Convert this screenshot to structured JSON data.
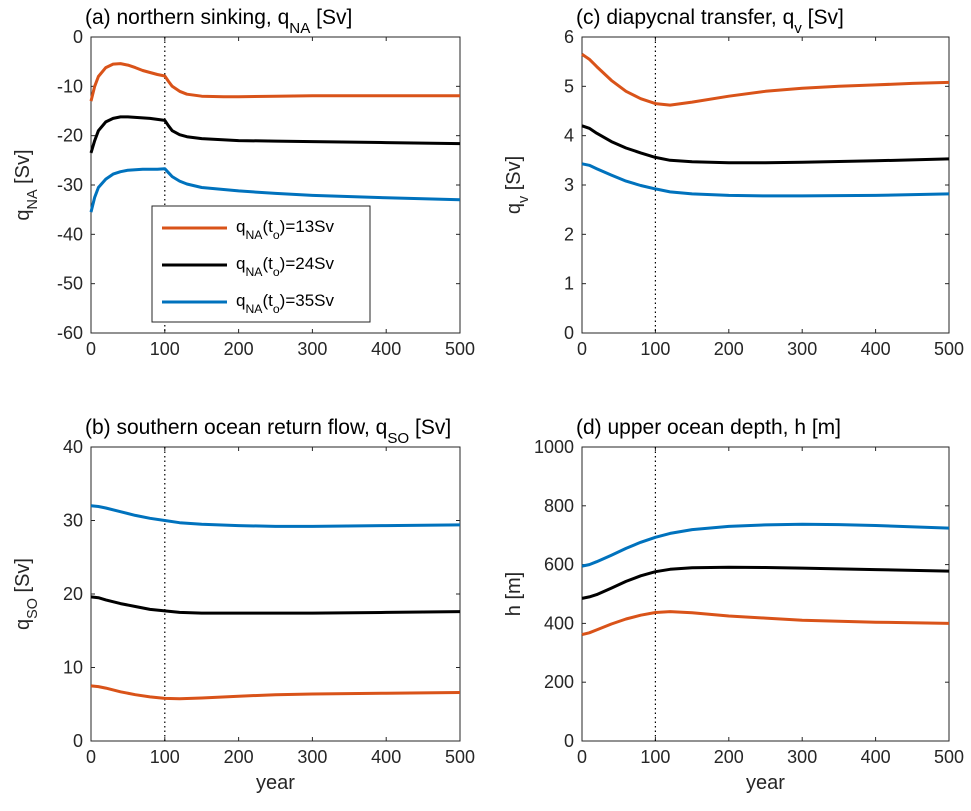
{
  "chart_data": [
    {
      "type": "line",
      "panel": "a",
      "title": "(a) northern sinking, q",
      "title_subscript": "NA",
      "title_suffix": " [Sv]",
      "ylabel": "q",
      "ylabel_subscript": "NA",
      "ylabel_suffix": " [Sv]",
      "xlabel": "",
      "xlim": [
        0,
        500
      ],
      "ylim": [
        -60,
        0
      ],
      "xticks": [
        0,
        100,
        200,
        300,
        400,
        500
      ],
      "yticks": [
        -60,
        -50,
        -40,
        -30,
        -20,
        -10,
        0
      ],
      "vline_x": 100,
      "legend": true,
      "series": [
        {
          "name": "q_NA(t_o)=13Sv",
          "color": "#D95319",
          "x": [
            0,
            5,
            10,
            20,
            30,
            40,
            50,
            60,
            70,
            80,
            90,
            100,
            105,
            110,
            120,
            130,
            150,
            180,
            200,
            250,
            300,
            400,
            500
          ],
          "y": [
            -13,
            -10,
            -8,
            -6.2,
            -5.5,
            -5.4,
            -5.7,
            -6.2,
            -6.8,
            -7.2,
            -7.6,
            -7.9,
            -9.0,
            -10.0,
            -11.0,
            -11.6,
            -12.0,
            -12.1,
            -12.1,
            -12.0,
            -11.9,
            -11.9,
            -11.9
          ]
        },
        {
          "name": "q_NA(t_o)=24Sv",
          "color": "#000000",
          "x": [
            0,
            5,
            10,
            20,
            30,
            40,
            50,
            60,
            70,
            80,
            90,
            100,
            105,
            110,
            120,
            130,
            150,
            200,
            250,
            300,
            400,
            500
          ],
          "y": [
            -23.5,
            -21,
            -19,
            -17.2,
            -16.5,
            -16.2,
            -16.2,
            -16.3,
            -16.4,
            -16.5,
            -16.7,
            -16.9,
            -18.0,
            -19.0,
            -19.8,
            -20.2,
            -20.6,
            -21.0,
            -21.1,
            -21.2,
            -21.4,
            -21.6
          ]
        },
        {
          "name": "q_NA(t_o)=35Sv",
          "color": "#0072BD",
          "x": [
            0,
            5,
            10,
            20,
            30,
            40,
            50,
            60,
            70,
            80,
            90,
            100,
            105,
            110,
            120,
            130,
            150,
            200,
            250,
            300,
            400,
            500
          ],
          "y": [
            -35.5,
            -32.5,
            -30.5,
            -28.8,
            -27.8,
            -27.3,
            -27.0,
            -26.9,
            -26.8,
            -26.8,
            -26.8,
            -26.7,
            -27.5,
            -28.3,
            -29.2,
            -29.8,
            -30.5,
            -31.2,
            -31.7,
            -32.1,
            -32.6,
            -33.0
          ]
        }
      ]
    },
    {
      "type": "line",
      "panel": "c",
      "title": "(c) diapycnal transfer, q",
      "title_subscript": "v",
      "title_suffix": " [Sv]",
      "ylabel": "q",
      "ylabel_subscript": "v",
      "ylabel_suffix": " [Sv]",
      "xlabel": "",
      "xlim": [
        0,
        500
      ],
      "ylim": [
        0,
        6
      ],
      "xticks": [
        0,
        100,
        200,
        300,
        400,
        500
      ],
      "yticks": [
        0,
        1,
        2,
        3,
        4,
        5,
        6
      ],
      "vline_x": 100,
      "legend": false,
      "series": [
        {
          "name": "q_NA(t_o)=13Sv",
          "color": "#D95319",
          "x": [
            0,
            10,
            20,
            40,
            60,
            80,
            100,
            120,
            150,
            200,
            250,
            300,
            350,
            400,
            450,
            500
          ],
          "y": [
            5.65,
            5.55,
            5.4,
            5.12,
            4.9,
            4.75,
            4.65,
            4.62,
            4.68,
            4.8,
            4.9,
            4.96,
            5.0,
            5.03,
            5.06,
            5.08
          ]
        },
        {
          "name": "q_NA(t_o)=24Sv",
          "color": "#000000",
          "x": [
            0,
            10,
            20,
            40,
            60,
            80,
            100,
            120,
            150,
            200,
            250,
            300,
            400,
            500
          ],
          "y": [
            4.2,
            4.15,
            4.05,
            3.88,
            3.75,
            3.65,
            3.56,
            3.5,
            3.47,
            3.45,
            3.45,
            3.46,
            3.49,
            3.53
          ]
        },
        {
          "name": "q_NA(t_o)=35Sv",
          "color": "#0072BD",
          "x": [
            0,
            10,
            20,
            40,
            60,
            80,
            100,
            120,
            150,
            200,
            250,
            300,
            400,
            500
          ],
          "y": [
            3.43,
            3.4,
            3.33,
            3.2,
            3.08,
            2.99,
            2.92,
            2.86,
            2.82,
            2.79,
            2.78,
            2.78,
            2.79,
            2.82
          ]
        }
      ]
    },
    {
      "type": "line",
      "panel": "b",
      "title": "(b) southern ocean return flow, q",
      "title_subscript": "SO",
      "title_suffix": " [Sv]",
      "ylabel": "q",
      "ylabel_subscript": "SO",
      "ylabel_suffix": " [Sv]",
      "xlabel": "year",
      "xlim": [
        0,
        500
      ],
      "ylim": [
        0,
        40
      ],
      "xticks": [
        0,
        100,
        200,
        300,
        400,
        500
      ],
      "yticks": [
        0,
        10,
        20,
        30,
        40
      ],
      "vline_x": 100,
      "legend": false,
      "series": [
        {
          "name": "q_NA(t_o)=13Sv",
          "color": "#D95319",
          "x": [
            0,
            10,
            20,
            40,
            60,
            80,
            100,
            120,
            150,
            200,
            250,
            300,
            400,
            500
          ],
          "y": [
            7.5,
            7.4,
            7.2,
            6.7,
            6.3,
            6.0,
            5.8,
            5.75,
            5.85,
            6.1,
            6.3,
            6.4,
            6.5,
            6.6
          ]
        },
        {
          "name": "q_NA(t_o)=24Sv",
          "color": "#000000",
          "x": [
            0,
            10,
            20,
            40,
            60,
            80,
            100,
            120,
            150,
            200,
            250,
            300,
            400,
            500
          ],
          "y": [
            19.6,
            19.5,
            19.2,
            18.7,
            18.3,
            17.9,
            17.7,
            17.5,
            17.4,
            17.4,
            17.4,
            17.4,
            17.5,
            17.6
          ]
        },
        {
          "name": "q_NA(t_o)=35Sv",
          "color": "#0072BD",
          "x": [
            0,
            10,
            20,
            40,
            60,
            80,
            100,
            120,
            150,
            200,
            250,
            300,
            400,
            500
          ],
          "y": [
            32.0,
            31.9,
            31.7,
            31.2,
            30.7,
            30.3,
            30.0,
            29.7,
            29.5,
            29.3,
            29.2,
            29.2,
            29.3,
            29.4
          ]
        }
      ]
    },
    {
      "type": "line",
      "panel": "d",
      "title": "(d) upper ocean depth, h [m]",
      "title_subscript": "",
      "title_suffix": "",
      "ylabel": "h [m]",
      "ylabel_subscript": "",
      "ylabel_suffix": "",
      "xlabel": "year",
      "xlim": [
        0,
        500
      ],
      "ylim": [
        0,
        1000
      ],
      "xticks": [
        0,
        100,
        200,
        300,
        400,
        500
      ],
      "yticks": [
        0,
        200,
        400,
        600,
        800,
        1000
      ],
      "vline_x": 100,
      "legend": false,
      "series": [
        {
          "name": "q_NA(t_o)=13Sv",
          "color": "#D95319",
          "x": [
            0,
            10,
            20,
            40,
            60,
            80,
            100,
            120,
            150,
            200,
            250,
            300,
            400,
            500
          ],
          "y": [
            362,
            368,
            378,
            398,
            415,
            428,
            437,
            440,
            436,
            425,
            418,
            411,
            404,
            400
          ]
        },
        {
          "name": "q_NA(t_o)=24Sv",
          "color": "#000000",
          "x": [
            0,
            10,
            20,
            40,
            60,
            80,
            100,
            120,
            150,
            200,
            250,
            300,
            400,
            500
          ],
          "y": [
            485,
            490,
            498,
            520,
            543,
            562,
            576,
            584,
            589,
            591,
            590,
            588,
            583,
            578
          ]
        },
        {
          "name": "q_NA(t_o)=35Sv",
          "color": "#0072BD",
          "x": [
            0,
            10,
            20,
            40,
            60,
            80,
            100,
            120,
            150,
            200,
            250,
            300,
            350,
            400,
            500
          ],
          "y": [
            595,
            600,
            610,
            632,
            655,
            676,
            693,
            706,
            719,
            730,
            735,
            737,
            736,
            733,
            724
          ]
        }
      ]
    }
  ],
  "legend_entries": [
    {
      "base": "q",
      "sub1": "NA",
      "mid": "(t",
      "sub2": "o",
      "tail": ")=13Sv",
      "color": "#D95319"
    },
    {
      "base": "q",
      "sub1": "NA",
      "mid": "(t",
      "sub2": "o",
      "tail": ")=24Sv",
      "color": "#000000"
    },
    {
      "base": "q",
      "sub1": "NA",
      "mid": "(t",
      "sub2": "o",
      "tail": ")=35Sv",
      "color": "#0072BD"
    }
  ]
}
